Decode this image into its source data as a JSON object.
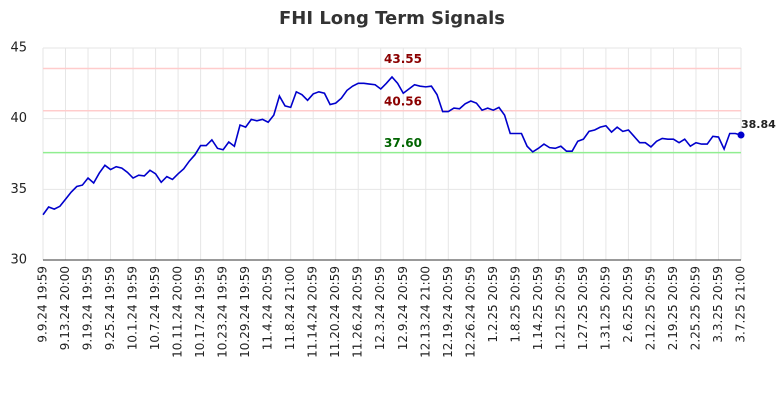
{
  "chart_data": {
    "type": "line",
    "title": "FHI Long Term Signals",
    "categories": [
      "9.9.24 19:59",
      null,
      null,
      null,
      "9.13.24 20:00",
      null,
      null,
      null,
      "9.19.24 19:59",
      null,
      null,
      null,
      "9.25.24 19:59",
      null,
      null,
      null,
      "10.1.24 19:59",
      null,
      null,
      null,
      "10.7.24 19:59",
      null,
      null,
      null,
      "10.11.24 20:00",
      null,
      null,
      null,
      "10.17.24 19:59",
      null,
      null,
      null,
      "10.23.24 19:59",
      null,
      null,
      null,
      "10.29.24 19:59",
      null,
      null,
      null,
      "11.4.24 20:59",
      null,
      null,
      null,
      "11.8.24 21:00",
      null,
      null,
      null,
      "11.14.24 20:59",
      null,
      null,
      null,
      "11.20.24 20:59",
      null,
      null,
      null,
      "11.26.24 20:59",
      null,
      null,
      null,
      "12.3.24 20:59",
      null,
      null,
      null,
      "12.9.24 20:59",
      null,
      null,
      null,
      "12.13.24 21:00",
      null,
      null,
      null,
      "12.19.24 20:59",
      null,
      null,
      null,
      "12.26.24 20:59",
      null,
      null,
      null,
      "1.2.25 20:59",
      null,
      null,
      null,
      "1.8.25 20:59",
      null,
      null,
      null,
      "1.14.25 20:59",
      null,
      null,
      null,
      "1.21.25 20:59",
      null,
      null,
      null,
      "1.27.25 20:59",
      null,
      null,
      null,
      "1.31.25 20:59",
      null,
      null,
      null,
      "2.6.25 20:59",
      null,
      null,
      null,
      "2.12.25 20:59",
      null,
      null,
      null,
      "2.19.25 20:59",
      null,
      null,
      null,
      "2.25.25 20:59",
      null,
      null,
      null,
      "3.3.25 20:59",
      null,
      null,
      null,
      "3.7.25 21:00"
    ],
    "series": [
      {
        "color": "#0000cc",
        "values": [
          33.2,
          33.75,
          33.6,
          33.8,
          34.3,
          34.8,
          35.2,
          35.3,
          35.8,
          35.45,
          36.15,
          36.7,
          36.4,
          36.6,
          36.5,
          36.2,
          35.8,
          36.0,
          35.95,
          36.35,
          36.1,
          35.5,
          35.9,
          35.7,
          36.1,
          36.45,
          37.0,
          37.45,
          38.1,
          38.1,
          38.5,
          37.9,
          37.8,
          38.35,
          38.05,
          39.55,
          39.4,
          39.95,
          39.85,
          39.95,
          39.75,
          40.25,
          41.6,
          40.9,
          40.8,
          41.9,
          41.7,
          41.3,
          41.75,
          41.9,
          41.8,
          41.0,
          41.1,
          41.45,
          42.0,
          42.3,
          42.5,
          42.5,
          42.45,
          42.4,
          42.1,
          42.5,
          42.95,
          42.5,
          41.8,
          42.1,
          42.4,
          42.3,
          42.25,
          42.3,
          41.7,
          40.5,
          40.5,
          40.75,
          40.7,
          41.05,
          41.25,
          41.1,
          40.6,
          40.75,
          40.6,
          40.8,
          40.25,
          38.95,
          38.95,
          38.95,
          38.05,
          37.65,
          37.9,
          38.2,
          37.95,
          37.9,
          38.05,
          37.7,
          37.7,
          38.4,
          38.55,
          39.1,
          39.2,
          39.4,
          39.5,
          39.05,
          39.4,
          39.1,
          39.2,
          38.75,
          38.3,
          38.3,
          38.0,
          38.4,
          38.6,
          38.55,
          38.55,
          38.3,
          38.55,
          38.05,
          38.3,
          38.2,
          38.2,
          38.75,
          38.7,
          37.85,
          38.95,
          38.95,
          38.84
        ]
      }
    ],
    "reference_lines": [
      {
        "value": 43.55,
        "label": "43.55",
        "color": "#ffcccc",
        "label_color": "#8b0000"
      },
      {
        "value": 40.56,
        "label": "40.56",
        "color": "#ffcccc",
        "label_color": "#8b0000"
      },
      {
        "value": 37.6,
        "label": "37.60",
        "color": "#90ee90",
        "label_color": "#006400"
      }
    ],
    "ylim": [
      30,
      45
    ],
    "yticks": [
      30,
      35,
      40,
      45
    ],
    "grid": true
  }
}
